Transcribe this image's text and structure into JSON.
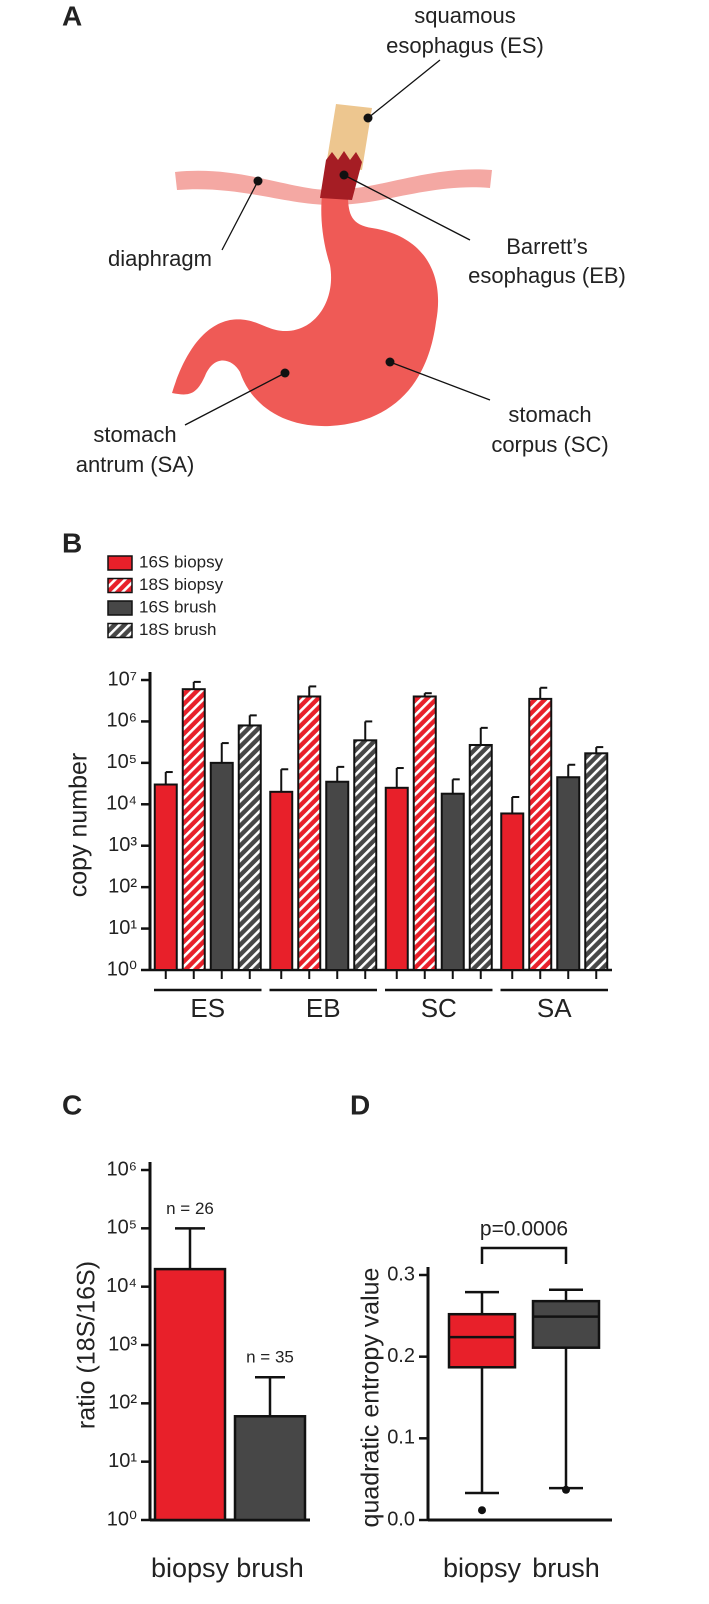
{
  "panel_labels": [
    "A",
    "B",
    "C",
    "D"
  ],
  "diagram": {
    "labels": [
      {
        "lines": [
          "squamous",
          "esophagus (ES)"
        ]
      },
      {
        "lines": [
          "Barrett’s",
          "esophagus (EB)"
        ]
      },
      {
        "lines": [
          "diaphragm"
        ]
      },
      {
        "lines": [
          "stomach",
          "antrum (SA)"
        ]
      },
      {
        "lines": [
          "stomach",
          "corpus (SC)"
        ]
      }
    ]
  },
  "chart_data": [
    {
      "type": "bar",
      "ylabel": "copy number",
      "log": true,
      "legend": "top-left",
      "categories": [
        "ES",
        "EB",
        "SC",
        "SA"
      ],
      "series": [
        {
          "name": "16S biopsy",
          "color": "#e8202a",
          "hatch": false,
          "values": [
            30000,
            20000,
            25000,
            6000
          ],
          "errors": [
            30000,
            50000,
            50000,
            9000
          ]
        },
        {
          "name": "18S biopsy",
          "color": "#e8202a",
          "hatch": true,
          "values": [
            6000000,
            4000000,
            4000000,
            3500000
          ],
          "errors": [
            3000000,
            3000000,
            800000,
            3000000
          ]
        },
        {
          "name": "16S brush",
          "color": "#474747",
          "hatch": false,
          "values": [
            100000,
            35000,
            18000,
            45000
          ],
          "errors": [
            200000,
            45000,
            22000,
            45000
          ]
        },
        {
          "name": "18S brush",
          "color": "#474747",
          "hatch": true,
          "values": [
            800000,
            350000,
            270000,
            170000
          ],
          "errors": [
            600000,
            650000,
            430000,
            70000
          ]
        }
      ],
      "ylim": [
        1,
        10000000
      ],
      "yticks": [
        {
          "value": 1,
          "label": "10⁰"
        },
        {
          "value": 10,
          "label": "10¹"
        },
        {
          "value": 100,
          "label": "10²"
        },
        {
          "value": 1000,
          "label": "10³"
        },
        {
          "value": 10000,
          "label": "10⁴"
        },
        {
          "value": 100000,
          "label": "10⁵"
        },
        {
          "value": 1000000,
          "label": "10⁶"
        },
        {
          "value": 10000000,
          "label": "10⁷"
        }
      ]
    },
    {
      "type": "bar",
      "ylabel": "ratio (18S/16S)",
      "log": true,
      "categories": [
        "biopsy",
        "brush"
      ],
      "colors": [
        "#e8202a",
        "#474747"
      ],
      "values": [
        20000,
        60
      ],
      "errors": [
        80000,
        220
      ],
      "annotations": [
        "n = 26",
        "n = 35"
      ],
      "ylim": [
        1,
        1000000
      ],
      "yticks": [
        {
          "value": 1,
          "label": "10⁰"
        },
        {
          "value": 10,
          "label": "10¹"
        },
        {
          "value": 100,
          "label": "10²"
        },
        {
          "value": 1000,
          "label": "10³"
        },
        {
          "value": 10000,
          "label": "10⁴"
        },
        {
          "value": 100000,
          "label": "10⁵"
        },
        {
          "value": 1000000,
          "label": "10⁶"
        }
      ]
    },
    {
      "type": "box",
      "ylabel": "quadratic entropy value",
      "annotation": "p=0.0006",
      "categories": [
        "biopsy",
        "brush"
      ],
      "colors": [
        "#e8202a",
        "#474747"
      ],
      "boxes": [
        {
          "low": 0.033,
          "q1": 0.187,
          "median": 0.224,
          "q3": 0.252,
          "high": 0.279,
          "outliers": [
            0.012
          ]
        },
        {
          "low": 0.039,
          "q1": 0.211,
          "median": 0.249,
          "q3": 0.268,
          "high": 0.282,
          "outliers": [
            0.037
          ]
        }
      ],
      "ylim": [
        0,
        0.3
      ],
      "yticks": [
        {
          "value": 0,
          "label": "0.0"
        },
        0.1,
        0.2,
        0.3
      ]
    }
  ]
}
